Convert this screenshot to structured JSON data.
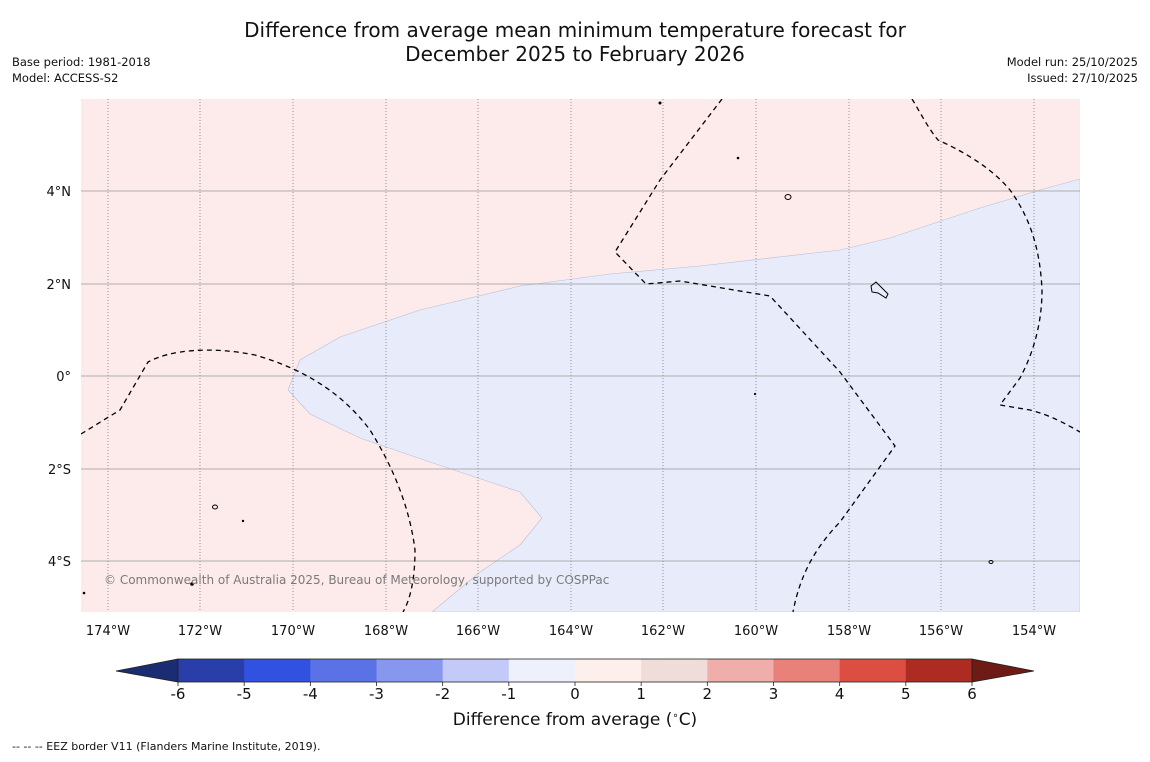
{
  "title_line1": "Difference from average mean minimum temperature forecast for",
  "title_line2": "December 2025 to February 2026",
  "meta_left": {
    "base_period": "Base period: 1981-2018",
    "model": "Model: ACCESS-S2"
  },
  "meta_right": {
    "model_run": "Model run: 25/10/2025",
    "issued": "Issued: 27/10/2025"
  },
  "map": {
    "lon_ticks": [
      "174°W",
      "172°W",
      "170°W",
      "168°W",
      "166°W",
      "164°W",
      "162°W",
      "160°W",
      "158°W",
      "156°W",
      "154°W"
    ],
    "lat_ticks": [
      "4°N",
      "2°N",
      "0°",
      "2°S",
      "4°S"
    ],
    "copyright": "© Commonwealth of Australia 2025, Bureau of Meteorology, supported by COSPPac",
    "colors": {
      "warm_fill": "#fcebea",
      "cool_fill": "#e8ebfa"
    }
  },
  "colorbar": {
    "label_main": "Difference from average (",
    "label_degree": "∘",
    "label_unit": "C)",
    "ticks": [
      "-6",
      "-5",
      "-4",
      "-3",
      "-2",
      "-1",
      "0",
      "1",
      "2",
      "3",
      "4",
      "5",
      "6"
    ],
    "colors": [
      "#2a3eaa",
      "#3152e0",
      "#5a72e6",
      "#8797ee",
      "#c4caf7",
      "#eef0fb",
      "#fdefeb",
      "#f0dcd8",
      "#efaeaa",
      "#e8817a",
      "#dc4d42",
      "#ad2b22"
    ],
    "under_color": "#1a2c72",
    "over_color": "#6e1a15"
  },
  "footer": "--  --  -- EEZ border V11 (Flanders Marine Institute, 2019)."
}
